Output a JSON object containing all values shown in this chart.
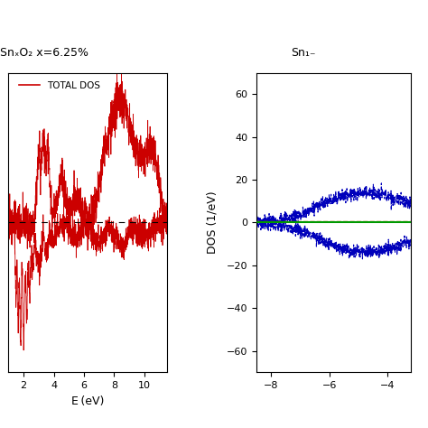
{
  "title_left": "SnₓO₂ x=6.25%",
  "title_right": "Sn₁₋",
  "legend_label": "TOTAL DOS",
  "ylabel_right": "DOS (1/eV)",
  "xlabel_left": "E (eV)",
  "xlim_left": [
    1.0,
    11.5
  ],
  "ylim_left": [
    -0.12,
    0.12
  ],
  "xlim_right": [
    -8.5,
    -3.2
  ],
  "ylim_right": [
    -70,
    70
  ],
  "yticks_right": [
    -60,
    -40,
    -20,
    0,
    20,
    40,
    60
  ],
  "xticks_right": [
    -8,
    -6,
    -4
  ],
  "xticks_left": [
    2,
    4,
    6,
    8,
    10
  ],
  "red_color": "#cc0000",
  "blue_color": "#0000bb",
  "green_color": "#009900",
  "orange_color": "#cc4400",
  "background_color": "#ffffff"
}
